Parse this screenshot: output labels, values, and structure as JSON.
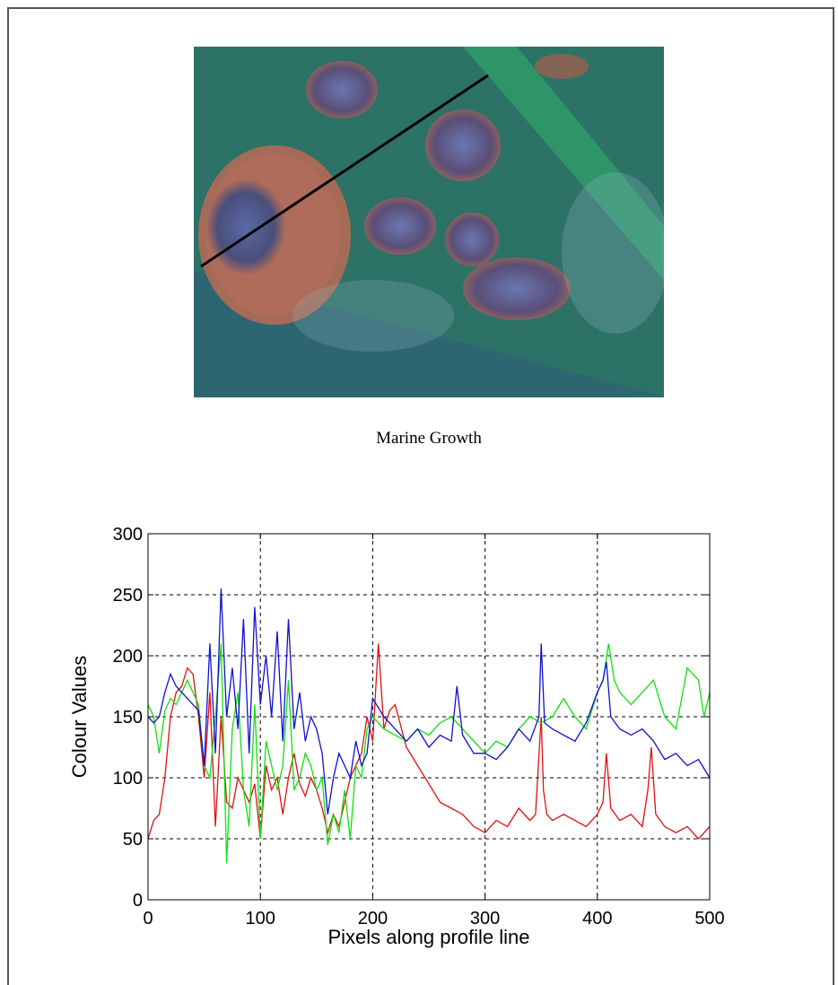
{
  "figure": {
    "caption": "Marine Growth"
  },
  "colors": {
    "red": "#e01010",
    "green": "#10e010",
    "blue": "#1010d0"
  },
  "chart_data": {
    "type": "line",
    "title": "",
    "xlabel": "Pixels along profile line",
    "ylabel": "Colour Values",
    "xlim": [
      0,
      500
    ],
    "ylim": [
      0,
      300
    ],
    "xticks": [
      0,
      100,
      200,
      300,
      400,
      500
    ],
    "yticks": [
      0,
      50,
      100,
      150,
      200,
      250,
      300
    ],
    "grid": true,
    "series": [
      {
        "color": "red",
        "x": [
          0,
          5,
          10,
          15,
          20,
          25,
          30,
          35,
          40,
          45,
          50,
          55,
          60,
          65,
          70,
          75,
          80,
          85,
          90,
          95,
          100,
          105,
          110,
          115,
          120,
          125,
          130,
          135,
          140,
          145,
          150,
          155,
          160,
          165,
          170,
          175,
          180,
          185,
          190,
          195,
          200,
          205,
          210,
          215,
          220,
          230,
          240,
          250,
          260,
          270,
          280,
          290,
          300,
          310,
          320,
          330,
          340,
          345,
          350,
          352,
          355,
          360,
          370,
          380,
          390,
          400,
          405,
          408,
          412,
          420,
          430,
          440,
          445,
          448,
          452,
          460,
          470,
          480,
          490,
          500
        ],
        "y": [
          50,
          65,
          70,
          100,
          150,
          170,
          175,
          190,
          185,
          150,
          100,
          170,
          60,
          150,
          80,
          75,
          100,
          90,
          80,
          95,
          50,
          110,
          90,
          100,
          70,
          100,
          120,
          95,
          85,
          100,
          90,
          75,
          55,
          70,
          60,
          80,
          100,
          110,
          120,
          150,
          130,
          210,
          140,
          155,
          160,
          125,
          110,
          95,
          80,
          75,
          70,
          60,
          55,
          65,
          60,
          75,
          65,
          70,
          150,
          90,
          70,
          65,
          70,
          65,
          60,
          70,
          80,
          120,
          75,
          65,
          70,
          60,
          90,
          125,
          70,
          60,
          55,
          60,
          50,
          60
        ]
      },
      {
        "color": "green",
        "x": [
          0,
          5,
          10,
          15,
          20,
          25,
          30,
          35,
          40,
          45,
          50,
          55,
          60,
          65,
          70,
          75,
          80,
          85,
          90,
          95,
          100,
          105,
          110,
          115,
          120,
          125,
          130,
          135,
          140,
          145,
          150,
          155,
          160,
          165,
          170,
          175,
          180,
          185,
          190,
          195,
          200,
          210,
          220,
          230,
          240,
          250,
          260,
          270,
          280,
          290,
          300,
          310,
          320,
          330,
          340,
          350,
          360,
          370,
          380,
          390,
          400,
          405,
          410,
          415,
          420,
          430,
          440,
          450,
          460,
          470,
          480,
          490,
          495,
          500
        ],
        "y": [
          160,
          150,
          120,
          155,
          165,
          160,
          170,
          180,
          170,
          160,
          110,
          100,
          150,
          210,
          30,
          140,
          170,
          90,
          60,
          160,
          50,
          130,
          110,
          90,
          110,
          180,
          90,
          100,
          120,
          110,
          90,
          100,
          45,
          70,
          55,
          90,
          50,
          110,
          100,
          140,
          150,
          140,
          135,
          130,
          140,
          135,
          145,
          150,
          140,
          130,
          120,
          130,
          125,
          140,
          150,
          145,
          150,
          165,
          150,
          140,
          170,
          180,
          210,
          180,
          170,
          160,
          170,
          180,
          150,
          140,
          190,
          180,
          150,
          170
        ]
      },
      {
        "color": "blue",
        "x": [
          0,
          5,
          10,
          15,
          20,
          25,
          30,
          35,
          40,
          45,
          50,
          55,
          60,
          65,
          70,
          75,
          80,
          85,
          90,
          95,
          100,
          105,
          110,
          115,
          120,
          125,
          130,
          135,
          140,
          145,
          150,
          155,
          160,
          165,
          170,
          175,
          180,
          185,
          190,
          195,
          200,
          210,
          220,
          230,
          240,
          250,
          260,
          270,
          275,
          280,
          290,
          300,
          310,
          320,
          330,
          340,
          348,
          350,
          353,
          360,
          370,
          380,
          390,
          400,
          405,
          408,
          412,
          420,
          430,
          440,
          450,
          460,
          470,
          480,
          490,
          500
        ],
        "y": [
          150,
          145,
          150,
          170,
          185,
          175,
          170,
          165,
          160,
          155,
          110,
          210,
          120,
          255,
          150,
          190,
          140,
          230,
          120,
          240,
          160,
          200,
          150,
          220,
          130,
          230,
          140,
          170,
          130,
          150,
          140,
          120,
          70,
          100,
          120,
          110,
          100,
          130,
          110,
          120,
          165,
          150,
          140,
          130,
          140,
          125,
          135,
          130,
          175,
          135,
          120,
          120,
          115,
          125,
          140,
          130,
          150,
          210,
          145,
          140,
          135,
          130,
          145,
          170,
          180,
          195,
          150,
          140,
          135,
          140,
          130,
          115,
          120,
          110,
          115,
          100
        ]
      }
    ]
  }
}
